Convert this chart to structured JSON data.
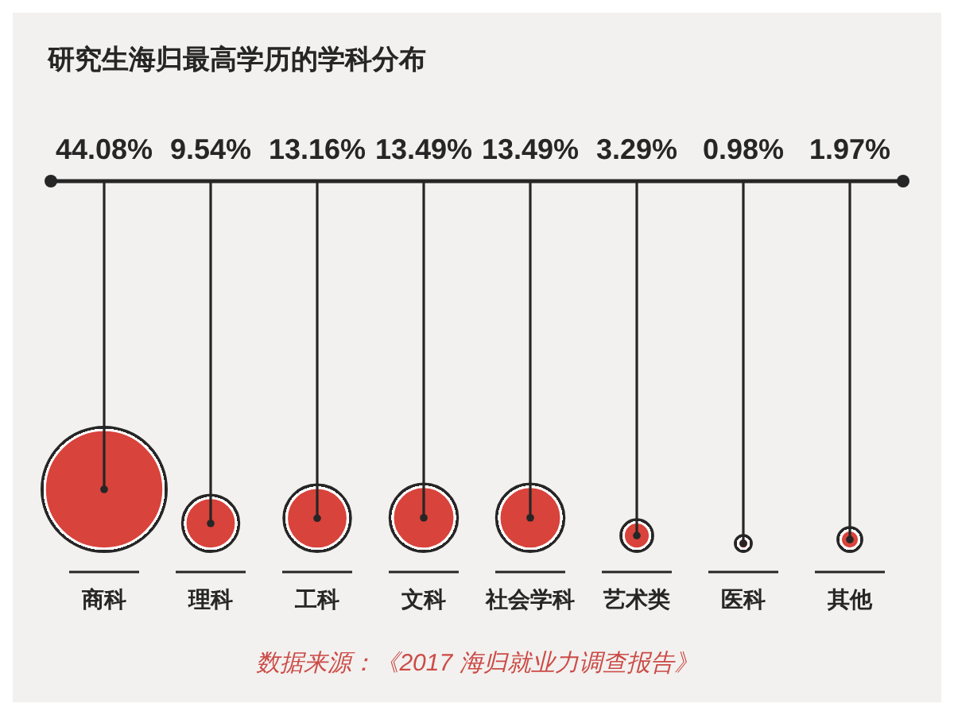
{
  "chart_data": {
    "type": "other",
    "title": "研究生海归最高学历的学科分布",
    "categories": [
      "商科",
      "理科",
      "工科",
      "文科",
      "社会学科",
      "艺术类",
      "医科",
      "其他"
    ],
    "values": [
      44.08,
      9.54,
      13.16,
      13.49,
      13.49,
      3.29,
      0.98,
      1.97
    ],
    "value_labels": [
      "44.08%",
      "9.54%",
      "13.16%",
      "13.49%",
      "13.49%",
      "3.29%",
      "0.98%",
      "1.97%"
    ],
    "color": "#d8433b",
    "annotations": [
      "数据来源：《2017 海归就业力调查报告》"
    ]
  }
}
